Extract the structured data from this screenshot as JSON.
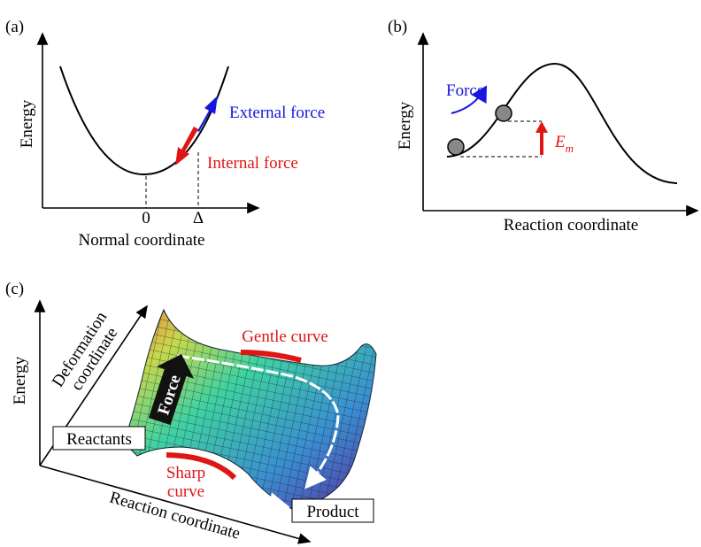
{
  "panels": {
    "a": {
      "label": "(a)",
      "y_axis": "Energy",
      "x_axis": "Normal coordinate",
      "tick_0": "0",
      "tick_delta": "Δ",
      "external": "External force",
      "internal": "Internal force"
    },
    "b": {
      "label": "(b)",
      "y_axis": "Energy",
      "x_axis": "Reaction coordinate",
      "force": "Force",
      "barrier": "E",
      "barrier_sub": "m"
    },
    "c": {
      "label": "(c)",
      "y_axis": "Energy",
      "deformation": "Deformation coordinate",
      "reaction": "Reaction coordinate",
      "reactants": "Reactants",
      "product": "Product",
      "gentle": "Gentle curve",
      "sharp_1": "Sharp",
      "sharp_2": "curve",
      "force": "Force"
    }
  }
}
